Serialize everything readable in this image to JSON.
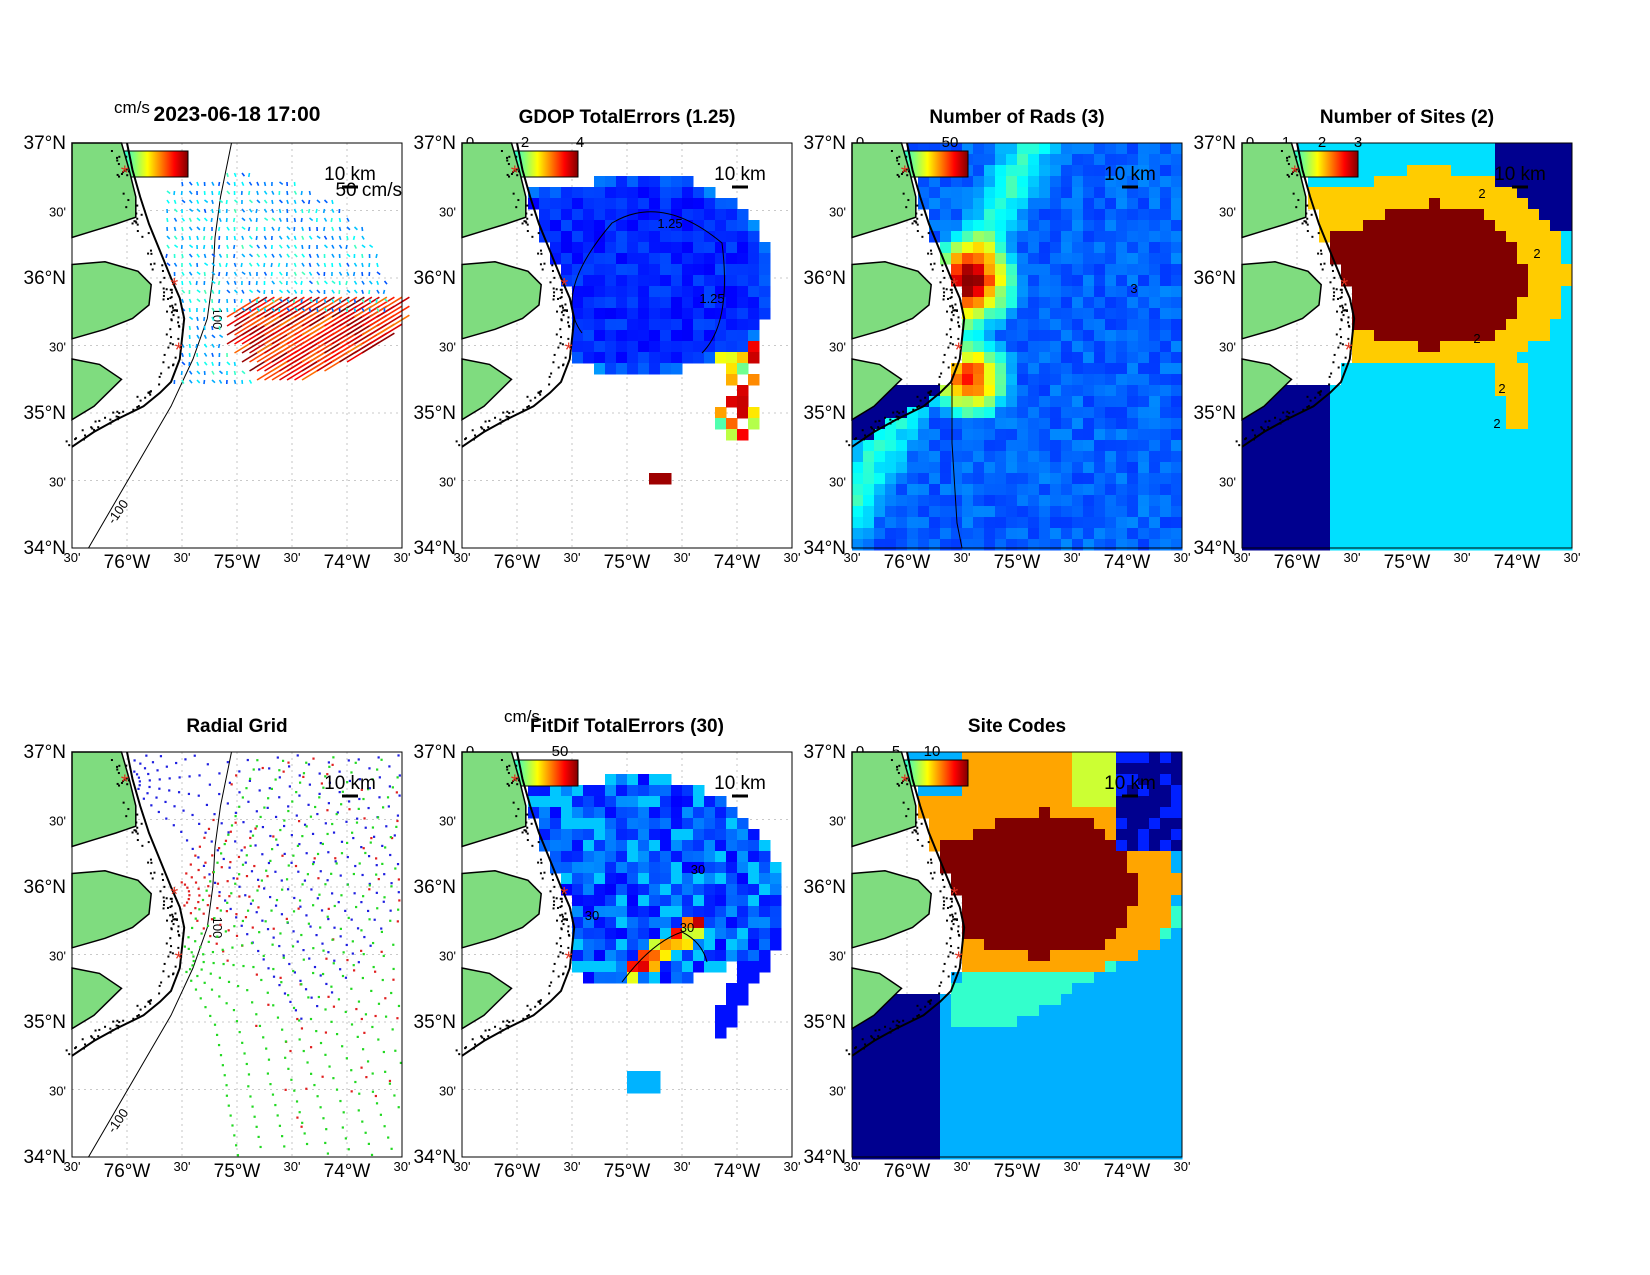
{
  "figure": {
    "timestamp": "2023-06-18 17:00",
    "lat_labels": [
      "37°N",
      "30'",
      "36°N",
      "30'",
      "35°N",
      "30'",
      "34°N"
    ],
    "lon_labels": [
      "30'",
      "76°W",
      "30'",
      "75°W",
      "30'",
      "74°W",
      "30'"
    ],
    "depth_contour_labels": [
      "-100",
      "100"
    ],
    "scale_bar_label": "10 km",
    "site_marker": "*"
  },
  "panels": [
    {
      "id": "currents",
      "title": "2023-06-18 17:00",
      "colorbar": {
        "unit": "cm/s",
        "tick_labels": [],
        "colormap": "jet"
      },
      "reference_vector_label": "50 cm/s",
      "field": {
        "type": "vectors",
        "speed_range_cm_s": [
          0,
          100
        ]
      }
    },
    {
      "id": "gdop",
      "title": "GDOP TotalErrors (1.25)",
      "colorbar": {
        "unit": "",
        "tick_labels": [
          "0",
          "2",
          "4"
        ],
        "colormap": "jet"
      },
      "contour_labels": [
        "1.25",
        "1.25"
      ],
      "field": {
        "type": "grid",
        "value_range": [
          0,
          4
        ]
      }
    },
    {
      "id": "nrads",
      "title": "Number of Rads (3)",
      "colorbar": {
        "unit": "",
        "tick_labels": [
          "0",
          "50"
        ],
        "colormap": "jet"
      },
      "contour_labels": [
        "3"
      ],
      "field": {
        "type": "grid",
        "value_range": [
          0,
          70
        ]
      }
    },
    {
      "id": "nsites",
      "title": "Number of Sites (2)",
      "colorbar": {
        "unit": "",
        "tick_labels": [
          "0",
          "1",
          "2",
          "3"
        ],
        "colormap": "jet"
      },
      "contour_labels": [
        "2",
        "2",
        "2",
        "2",
        "2"
      ],
      "field": {
        "type": "categorical",
        "classes": [
          0,
          1,
          2,
          3
        ]
      }
    },
    {
      "id": "radgrid",
      "title": "Radial Grid",
      "field": {
        "type": "radial_points",
        "site_colors": [
          "#1f1fe0",
          "#e01f1f",
          "#22d822"
        ]
      }
    },
    {
      "id": "fitdif",
      "title": "FitDif TotalErrors (30)",
      "colorbar": {
        "unit": "cm/s",
        "tick_labels": [
          "0",
          "50"
        ],
        "colormap": "jet"
      },
      "contour_labels": [
        "30",
        "30",
        "30"
      ],
      "field": {
        "type": "grid",
        "value_range": [
          0,
          60
        ]
      }
    },
    {
      "id": "sitecodes",
      "title": "Site Codes",
      "colorbar": {
        "unit": "",
        "tick_labels": [
          "0",
          "5",
          "10"
        ],
        "colormap": "jet"
      },
      "field": {
        "type": "categorical",
        "classes": [
          0,
          3,
          4,
          5,
          6,
          7,
          9,
          11
        ]
      }
    }
  ],
  "colors": {
    "land": "#7fdc7f",
    "coast": "#000000",
    "grid_line": "#b8b8b8",
    "site_marker": "#e0301e"
  }
}
